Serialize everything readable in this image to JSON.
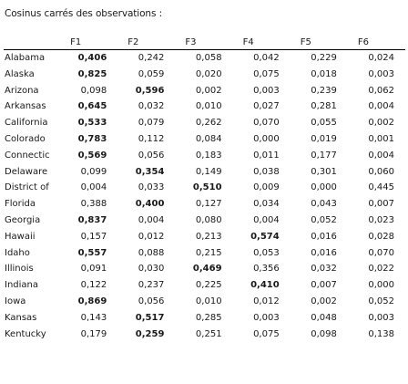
{
  "title": "Cosinus carrés des observations :",
  "columns": [
    "F1",
    "F2",
    "F3",
    "F4",
    "F5",
    "F6"
  ],
  "rows": [
    {
      "label": "Alabama",
      "values": [
        "0,406",
        "0,242",
        "0,058",
        "0,042",
        "0,229",
        "0,024"
      ],
      "bold": [
        0
      ]
    },
    {
      "label": "Alaska",
      "values": [
        "0,825",
        "0,059",
        "0,020",
        "0,075",
        "0,018",
        "0,003"
      ],
      "bold": [
        0
      ]
    },
    {
      "label": "Arizona",
      "values": [
        "0,098",
        "0,596",
        "0,002",
        "0,003",
        "0,239",
        "0,062"
      ],
      "bold": [
        1
      ]
    },
    {
      "label": "Arkansas",
      "values": [
        "0,645",
        "0,032",
        "0,010",
        "0,027",
        "0,281",
        "0,004"
      ],
      "bold": [
        0
      ]
    },
    {
      "label": "California",
      "values": [
        "0,533",
        "0,079",
        "0,262",
        "0,070",
        "0,055",
        "0,002"
      ],
      "bold": [
        0
      ]
    },
    {
      "label": "Colorado",
      "values": [
        "0,783",
        "0,112",
        "0,084",
        "0,000",
        "0,019",
        "0,001"
      ],
      "bold": [
        0
      ]
    },
    {
      "label": "Connectic",
      "values": [
        "0,569",
        "0,056",
        "0,183",
        "0,011",
        "0,177",
        "0,004"
      ],
      "bold": [
        0
      ]
    },
    {
      "label": "Delaware",
      "values": [
        "0,099",
        "0,354",
        "0,149",
        "0,038",
        "0,301",
        "0,060"
      ],
      "bold": [
        1
      ]
    },
    {
      "label": "District of",
      "values": [
        "0,004",
        "0,033",
        "0,510",
        "0,009",
        "0,000",
        "0,445"
      ],
      "bold": [
        2
      ]
    },
    {
      "label": "Florida",
      "values": [
        "0,388",
        "0,400",
        "0,127",
        "0,034",
        "0,043",
        "0,007"
      ],
      "bold": [
        1
      ]
    },
    {
      "label": "Georgia",
      "values": [
        "0,837",
        "0,004",
        "0,080",
        "0,004",
        "0,052",
        "0,023"
      ],
      "bold": [
        0
      ]
    },
    {
      "label": "Hawaii",
      "values": [
        "0,157",
        "0,012",
        "0,213",
        "0,574",
        "0,016",
        "0,028"
      ],
      "bold": [
        3
      ]
    },
    {
      "label": "Idaho",
      "values": [
        "0,557",
        "0,088",
        "0,215",
        "0,053",
        "0,016",
        "0,070"
      ],
      "bold": [
        0
      ]
    },
    {
      "label": "Illinois",
      "values": [
        "0,091",
        "0,030",
        "0,469",
        "0,356",
        "0,032",
        "0,022"
      ],
      "bold": [
        2
      ]
    },
    {
      "label": "Indiana",
      "values": [
        "0,122",
        "0,237",
        "0,225",
        "0,410",
        "0,007",
        "0,000"
      ],
      "bold": [
        3
      ]
    },
    {
      "label": "Iowa",
      "values": [
        "0,869",
        "0,056",
        "0,010",
        "0,012",
        "0,002",
        "0,052"
      ],
      "bold": [
        0
      ]
    },
    {
      "label": "Kansas",
      "values": [
        "0,143",
        "0,517",
        "0,285",
        "0,003",
        "0,048",
        "0,003"
      ],
      "bold": [
        1
      ]
    },
    {
      "label": "Kentucky",
      "values": [
        "0,179",
        "0,259",
        "0,251",
        "0,075",
        "0,098",
        "0,138"
      ],
      "bold": [
        1
      ]
    }
  ]
}
